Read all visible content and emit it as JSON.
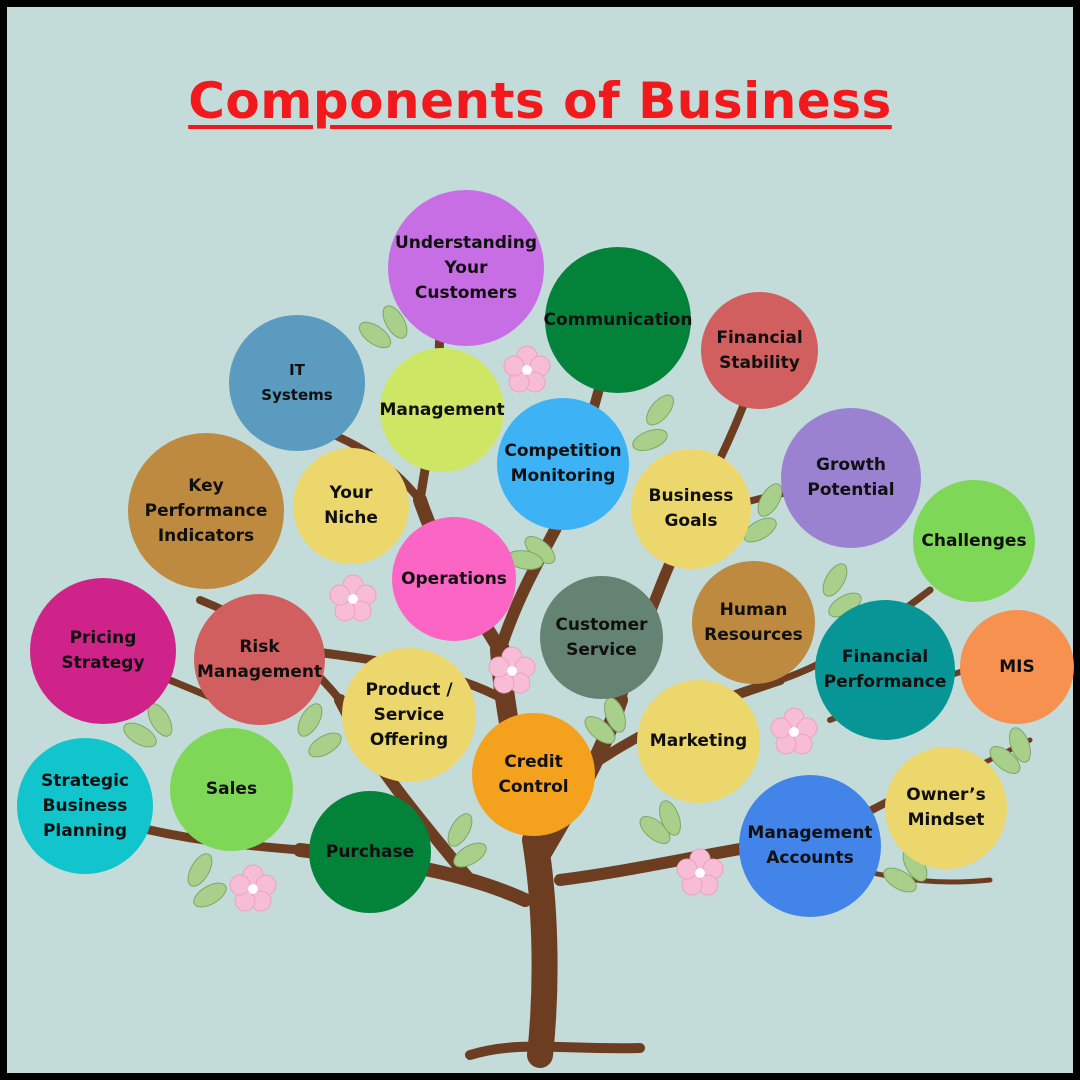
{
  "title": "Components of Business",
  "colors": {
    "background": "#c3dcda",
    "title": "#f1191c",
    "trunk": "#6d3d22",
    "leaf": "#a8d08a",
    "blossom": "#f7bcd6"
  },
  "nodes": [
    {
      "id": "understanding-your-customers",
      "label": "Understanding\nYour Customers",
      "color": "#c76ee4"
    },
    {
      "id": "communication",
      "label": "Communication",
      "color": "#03823a"
    },
    {
      "id": "financial-stability",
      "label": "Financial\nStability",
      "color": "#d25f5f"
    },
    {
      "id": "it-systems",
      "label": "IT\nSystems",
      "color": "#5b9bc0"
    },
    {
      "id": "management",
      "label": "Management",
      "color": "#cde664"
    },
    {
      "id": "competition-monitoring",
      "label": "Competition\nMonitoring",
      "color": "#3db3f6"
    },
    {
      "id": "growth-potential",
      "label": "Growth\nPotential",
      "color": "#9a82d1"
    },
    {
      "id": "key-performance-indicators",
      "label": "Key\nPerformance\nIndicators",
      "color": "#bd8a40"
    },
    {
      "id": "your-niche",
      "label": "Your\nNiche",
      "color": "#ecd76c"
    },
    {
      "id": "business-goals",
      "label": "Business\nGoals",
      "color": "#ecd76c"
    },
    {
      "id": "challenges",
      "label": "Challenges",
      "color": "#7fd757"
    },
    {
      "id": "operations",
      "label": "Operations",
      "color": "#fb65c3"
    },
    {
      "id": "customer-service",
      "label": "Customer\nService",
      "color": "#658373"
    },
    {
      "id": "human-resources",
      "label": "Human\nResources",
      "color": "#bd8a40"
    },
    {
      "id": "pricing-strategy",
      "label": "Pricing\nStrategy",
      "color": "#d0238a"
    },
    {
      "id": "risk-management",
      "label": "Risk\nManagement",
      "color": "#d25f5f"
    },
    {
      "id": "financial-performance",
      "label": "Financial\nPerformance",
      "color": "#079595"
    },
    {
      "id": "mis",
      "label": "MIS",
      "color": "#f79150"
    },
    {
      "id": "product-service-offering",
      "label": "Product /\nService\nOffering",
      "color": "#ecd76c"
    },
    {
      "id": "marketing",
      "label": "Marketing",
      "color": "#ecd76c"
    },
    {
      "id": "credit-control",
      "label": "Credit\nControl",
      "color": "#f4a11e"
    },
    {
      "id": "strategic-business-planning",
      "label": "Strategic\nBusiness\nPlanning",
      "color": "#12c5cc"
    },
    {
      "id": "sales",
      "label": "Sales",
      "color": "#7fd757"
    },
    {
      "id": "owners-mindset",
      "label": "Owner’s\nMindset",
      "color": "#ecd76c"
    },
    {
      "id": "purchase",
      "label": "Purchase",
      "color": "#03823a"
    },
    {
      "id": "management-accounts",
      "label": "Management\nAccounts",
      "color": "#4284e8"
    }
  ]
}
